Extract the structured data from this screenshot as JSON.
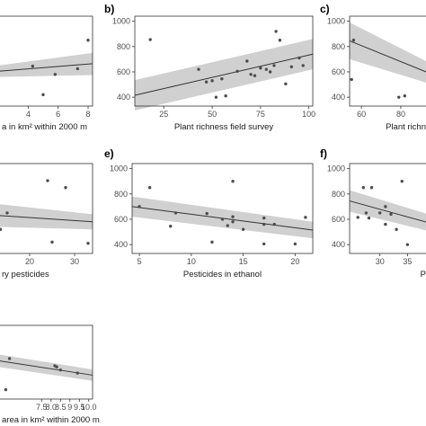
{
  "chart_data": [
    {
      "id": "a",
      "panel_label": "",
      "type": "scatter",
      "xlabel": "a in km² within 2000 m",
      "ylabel": "",
      "xlim": [
        2.0,
        8.3
      ],
      "ylim": [
        330,
        1040
      ],
      "xticks": [
        4,
        6,
        8
      ],
      "yticks": [],
      "x": [
        4.3,
        5.8,
        7.3,
        8.0,
        5.0
      ],
      "y": [
        645,
        580,
        625,
        850,
        420
      ],
      "fit": {
        "x": [
          2.0,
          8.3
        ],
        "y": [
          605,
          665
        ]
      },
      "ci": {
        "x": [
          2.0,
          8.3
        ],
        "lower": [
          560,
          575
        ],
        "upper": [
          650,
          750
        ]
      }
    },
    {
      "id": "b",
      "panel_label": "b)",
      "type": "scatter",
      "xlabel": "Plant richness field survey",
      "ylabel": "",
      "xlim": [
        10,
        102
      ],
      "ylim": [
        330,
        1040
      ],
      "xticks": [
        25,
        50,
        75,
        100
      ],
      "yticks": [
        400,
        600,
        800,
        1000
      ],
      "x": [
        18,
        43,
        47,
        50,
        52,
        55,
        57,
        63,
        68,
        70,
        72,
        75,
        78,
        80,
        82,
        83,
        85,
        88,
        91,
        95,
        97
      ],
      "y": [
        855,
        620,
        520,
        530,
        400,
        545,
        410,
        605,
        685,
        580,
        570,
        630,
        620,
        600,
        650,
        920,
        850,
        505,
        640,
        710,
        650
      ],
      "fit": {
        "x": [
          10,
          102
        ],
        "y": [
          415,
          740
        ]
      },
      "ci": {
        "x": [
          10,
          102
        ],
        "lower": [
          295,
          620
        ],
        "upper": [
          535,
          860
        ]
      }
    },
    {
      "id": "c",
      "panel_label": "c)",
      "type": "scatter",
      "xlabel": "Plant richn",
      "ylabel": "",
      "xlim": [
        54,
        96
      ],
      "ylim": [
        330,
        1040
      ],
      "xticks": [
        60,
        80
      ],
      "yticks": [
        400,
        600,
        800,
        1000
      ],
      "x": [
        55,
        56,
        79,
        82,
        95
      ],
      "y": [
        540,
        850,
        400,
        410,
        950
      ],
      "fit": {
        "x": [
          54,
          96
        ],
        "y": [
          845,
          580
        ]
      },
      "ci": {
        "x": [
          54,
          96
        ],
        "lower": [
          700,
          500
        ],
        "upper": [
          990,
          660
        ]
      }
    },
    {
      "id": "d",
      "panel_label": "",
      "type": "scatter",
      "xlabel": "ry pesticides",
      "ylabel": "",
      "xlim": [
        13,
        34
      ],
      "ylim": [
        330,
        1040
      ],
      "xticks": [
        20,
        30
      ],
      "yticks": [],
      "x": [
        13.5,
        15,
        24,
        25,
        28,
        33
      ],
      "y": [
        520,
        650,
        905,
        420,
        850,
        410
      ],
      "fit": {
        "x": [
          13,
          34
        ],
        "y": [
          630,
          580
        ]
      },
      "ci": {
        "x": [
          13,
          34
        ],
        "lower": [
          540,
          520
        ],
        "upper": [
          720,
          640
        ]
      }
    },
    {
      "id": "e",
      "panel_label": "e)",
      "type": "scatter",
      "xlabel": "Pesticides in ethanol",
      "ylabel": "",
      "xlim": [
        4.3,
        21.7
      ],
      "ylim": [
        330,
        1040
      ],
      "xticks": [
        5,
        10,
        15,
        20
      ],
      "yticks": [
        400,
        600,
        800,
        1000
      ],
      "x": [
        5,
        6,
        8,
        8.5,
        11.5,
        12,
        13,
        13.5,
        14,
        14,
        14,
        15,
        17,
        17,
        17,
        18,
        20,
        21
      ],
      "y": [
        700,
        850,
        545,
        650,
        645,
        420,
        600,
        550,
        580,
        900,
        620,
        520,
        610,
        560,
        405,
        560,
        405,
        615
      ],
      "fit": {
        "x": [
          4.3,
          21.7
        ],
        "y": [
          700,
          515
        ]
      },
      "ci": {
        "x": [
          4.3,
          21.7
        ],
        "lower": [
          620,
          450
        ],
        "upper": [
          780,
          580
        ]
      }
    },
    {
      "id": "f",
      "panel_label": "f)",
      "type": "scatter",
      "xlabel": "P",
      "ylabel": "",
      "xlim": [
        24.5,
        39.5
      ],
      "ylim": [
        330,
        1040
      ],
      "xticks": [
        30,
        35
      ],
      "yticks": [
        400,
        600,
        800,
        1000
      ],
      "x": [
        26,
        27,
        27.5,
        28,
        28.5,
        30,
        31,
        31,
        32,
        33,
        34,
        35
      ],
      "y": [
        615,
        850,
        650,
        610,
        850,
        650,
        700,
        560,
        640,
        520,
        900,
        400
      ],
      "fit": {
        "x": [
          24.5,
          39.5
        ],
        "y": [
          745,
          565
        ]
      },
      "ci": {
        "x": [
          24.5,
          39.5
        ],
        "lower": [
          660,
          500
        ],
        "upper": [
          830,
          630
        ]
      }
    },
    {
      "id": "g",
      "panel_label": "",
      "type": "scatter",
      "xlabel": "area in km² within 2000 m",
      "ylabel": "",
      "xlim": [
        5.2,
        10.2
      ],
      "ylim": [
        330,
        1040
      ],
      "xticks": [
        7.5,
        8.0,
        8.5,
        9.0,
        9.5,
        10.0
      ],
      "yticks": [],
      "x": [
        5.8,
        8.2,
        8.3,
        8.5,
        9.4,
        5.6
      ],
      "y": [
        720,
        650,
        640,
        610,
        580,
        420
      ],
      "fit": {
        "x": [
          5.2,
          10.2
        ],
        "y": [
          700,
          560
        ]
      },
      "ci": {
        "x": [
          5.2,
          10.2
        ],
        "lower": [
          640,
          505
        ],
        "upper": [
          760,
          615
        ]
      }
    }
  ]
}
